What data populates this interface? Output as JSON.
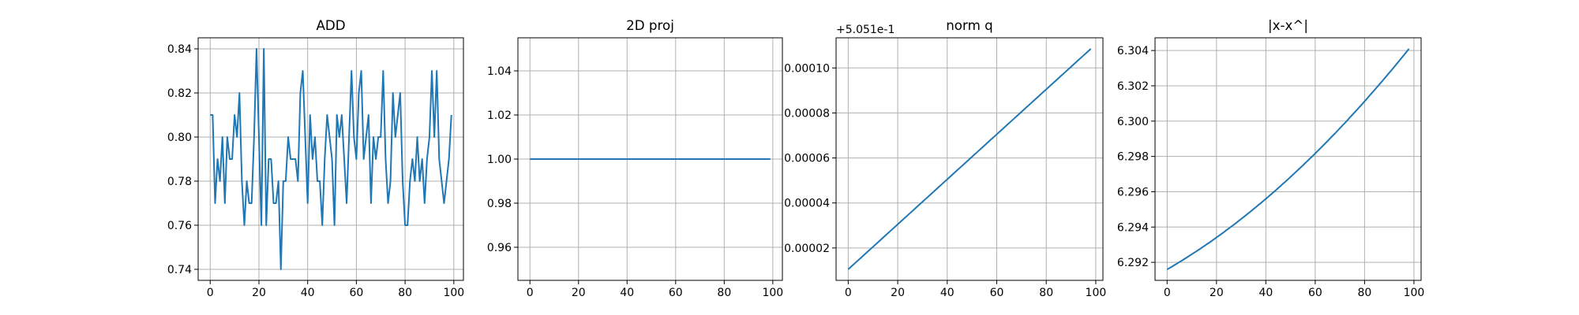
{
  "chart_data": [
    {
      "type": "line",
      "title": "ADD",
      "color": "#1f77b4",
      "grid": true,
      "x": [
        0,
        1,
        2,
        3,
        4,
        5,
        6,
        7,
        8,
        9,
        10,
        11,
        12,
        13,
        14,
        15,
        16,
        17,
        18,
        19,
        20,
        21,
        22,
        23,
        24,
        25,
        26,
        27,
        28,
        29,
        30,
        31,
        32,
        33,
        34,
        35,
        36,
        37,
        38,
        39,
        40,
        41,
        42,
        43,
        44,
        45,
        46,
        47,
        48,
        49,
        50,
        51,
        52,
        53,
        54,
        55,
        56,
        57,
        58,
        59,
        60,
        61,
        62,
        63,
        64,
        65,
        66,
        67,
        68,
        69,
        70,
        71,
        72,
        73,
        74,
        75,
        76,
        77,
        78,
        79,
        80,
        81,
        82,
        83,
        84,
        85,
        86,
        87,
        88,
        89,
        90,
        91,
        92,
        93,
        94,
        95,
        96,
        97,
        98,
        99
      ],
      "values": [
        0.81,
        0.81,
        0.77,
        0.79,
        0.78,
        0.8,
        0.77,
        0.8,
        0.79,
        0.79,
        0.81,
        0.8,
        0.82,
        0.78,
        0.76,
        0.78,
        0.77,
        0.77,
        0.8,
        0.84,
        0.8,
        0.76,
        0.84,
        0.76,
        0.79,
        0.79,
        0.77,
        0.77,
        0.78,
        0.74,
        0.78,
        0.78,
        0.8,
        0.79,
        0.79,
        0.79,
        0.78,
        0.82,
        0.83,
        0.8,
        0.77,
        0.81,
        0.79,
        0.8,
        0.78,
        0.78,
        0.76,
        0.79,
        0.81,
        0.8,
        0.79,
        0.76,
        0.81,
        0.8,
        0.81,
        0.79,
        0.77,
        0.8,
        0.83,
        0.8,
        0.79,
        0.82,
        0.83,
        0.79,
        0.8,
        0.81,
        0.77,
        0.8,
        0.79,
        0.8,
        0.8,
        0.83,
        0.79,
        0.77,
        0.78,
        0.82,
        0.8,
        0.81,
        0.82,
        0.78,
        0.76,
        0.76,
        0.78,
        0.79,
        0.78,
        0.8,
        0.78,
        0.79,
        0.77,
        0.79,
        0.8,
        0.83,
        0.8,
        0.83,
        0.79,
        0.78,
        0.77,
        0.78,
        0.79,
        0.81
      ],
      "xlim": [
        -4.95,
        103.95
      ],
      "xticks": [
        0,
        20,
        40,
        60,
        80,
        100
      ],
      "ylim": [
        0.735,
        0.845
      ],
      "yticks": [
        0.74,
        0.76,
        0.78,
        {
          "value": 0.8,
          "label": "0.80"
        },
        0.82,
        0.84
      ]
    },
    {
      "type": "line",
      "title": "2D proj",
      "color": "#1f77b4",
      "grid": true,
      "x": [
        0,
        1,
        2,
        3,
        4,
        5,
        6,
        7,
        8,
        9,
        10,
        11,
        12,
        13,
        14,
        15,
        16,
        17,
        18,
        19,
        20,
        21,
        22,
        23,
        24,
        25,
        26,
        27,
        28,
        29,
        30,
        31,
        32,
        33,
        34,
        35,
        36,
        37,
        38,
        39,
        40,
        41,
        42,
        43,
        44,
        45,
        46,
        47,
        48,
        49,
        50,
        51,
        52,
        53,
        54,
        55,
        56,
        57,
        58,
        59,
        60,
        61,
        62,
        63,
        64,
        65,
        66,
        67,
        68,
        69,
        70,
        71,
        72,
        73,
        74,
        75,
        76,
        77,
        78,
        79,
        80,
        81,
        82,
        83,
        84,
        85,
        86,
        87,
        88,
        89,
        90,
        91,
        92,
        93,
        94,
        95,
        96,
        97,
        98,
        99
      ],
      "values": [
        1,
        1,
        1,
        1,
        1,
        1,
        1,
        1,
        1,
        1,
        1,
        1,
        1,
        1,
        1,
        1,
        1,
        1,
        1,
        1,
        1,
        1,
        1,
        1,
        1,
        1,
        1,
        1,
        1,
        1,
        1,
        1,
        1,
        1,
        1,
        1,
        1,
        1,
        1,
        1,
        1,
        1,
        1,
        1,
        1,
        1,
        1,
        1,
        1,
        1,
        1,
        1,
        1,
        1,
        1,
        1,
        1,
        1,
        1,
        1,
        1,
        1,
        1,
        1,
        1,
        1,
        1,
        1,
        1,
        1,
        1,
        1,
        1,
        1,
        1,
        1,
        1,
        1,
        1,
        1,
        1,
        1,
        1,
        1,
        1,
        1,
        1,
        1,
        1,
        1,
        1,
        1,
        1,
        1,
        1,
        1,
        1,
        1,
        1,
        1
      ],
      "xlim": [
        -4.95,
        103.95
      ],
      "xticks": [
        0,
        20,
        40,
        60,
        80,
        100
      ],
      "ylim": [
        0.945,
        1.055
      ],
      "yticks": [
        0.96,
        0.98,
        {
          "value": 1.0,
          "label": "1.00"
        },
        1.02,
        1.04
      ]
    },
    {
      "type": "line",
      "title": "norm q",
      "offset_text": "+5.051e-1",
      "color": "#1f77b4",
      "grid": true,
      "x": [
        0,
        1,
        2,
        3,
        4,
        5,
        6,
        7,
        8,
        9,
        10,
        11,
        12,
        13,
        14,
        15,
        16,
        17,
        18,
        19,
        20,
        21,
        22,
        23,
        24,
        25,
        26,
        27,
        28,
        29,
        30,
        31,
        32,
        33,
        34,
        35,
        36,
        37,
        38,
        39,
        40,
        41,
        42,
        43,
        44,
        45,
        46,
        47,
        48,
        49,
        50,
        51,
        52,
        53,
        54,
        55,
        56,
        57,
        58,
        59,
        60,
        61,
        62,
        63,
        64,
        65,
        66,
        67,
        68,
        69,
        70,
        71,
        72,
        73,
        74,
        75,
        76,
        77,
        78,
        79,
        80,
        81,
        82,
        83,
        84,
        85,
        86,
        87,
        88,
        89,
        90,
        91,
        92,
        93,
        94,
        95,
        96,
        97,
        98
      ],
      "values": [
        1.05e-05,
        1.15e-05,
        1.25e-05,
        1.35e-05,
        1.45e-05,
        1.55e-05,
        1.65e-05,
        1.75e-05,
        1.85e-05,
        1.95e-05,
        2.05e-05,
        2.15e-05,
        2.25e-05,
        2.35e-05,
        2.45e-05,
        2.55e-05,
        2.65e-05,
        2.75e-05,
        2.85e-05,
        2.95e-05,
        3.05e-05,
        3.15e-05,
        3.25e-05,
        3.35e-05,
        3.45e-05,
        3.55e-05,
        3.65e-05,
        3.75e-05,
        3.85e-05,
        3.95e-05,
        4.05e-05,
        4.15e-05,
        4.25e-05,
        4.35e-05,
        4.45e-05,
        4.55e-05,
        4.65e-05,
        4.75e-05,
        4.85e-05,
        4.95e-05,
        5.05e-05,
        5.15e-05,
        5.25e-05,
        5.35e-05,
        5.45e-05,
        5.55e-05,
        5.65e-05,
        5.75e-05,
        5.85e-05,
        5.95e-05,
        6.05e-05,
        6.15e-05,
        6.25e-05,
        6.35e-05,
        6.45e-05,
        6.55e-05,
        6.65e-05,
        6.75e-05,
        6.85e-05,
        6.95e-05,
        7.05e-05,
        7.15e-05,
        7.25e-05,
        7.35e-05,
        7.45e-05,
        7.55e-05,
        7.65e-05,
        7.75e-05,
        7.85e-05,
        7.95e-05,
        8.05e-05,
        8.15e-05,
        8.25e-05,
        8.35e-05,
        8.45e-05,
        8.55e-05,
        8.65e-05,
        8.75e-05,
        8.85e-05,
        8.95e-05,
        9.05e-05,
        9.15e-05,
        9.25e-05,
        9.35e-05,
        9.45e-05,
        9.55e-05,
        9.65e-05,
        9.75e-05,
        9.85e-05,
        9.95e-05,
        0.0001005,
        0.0001015,
        0.0001025,
        0.0001035,
        0.0001045,
        0.0001055,
        0.0001065,
        0.0001075,
        0.0001085
      ],
      "xlim": [
        -4.9,
        102.9
      ],
      "xticks": [
        0,
        20,
        40,
        60,
        80,
        100
      ],
      "ylim": [
        5.6e-06,
        0.0001134
      ],
      "yticks": [
        2e-05,
        4e-05,
        6e-05,
        8e-05,
        {
          "value": 0.0001,
          "label": "0.00010"
        }
      ]
    },
    {
      "type": "line",
      "title": "|x-x^|",
      "color": "#1f77b4",
      "grid": true,
      "x": [
        0,
        1,
        2,
        3,
        4,
        5,
        6,
        7,
        8,
        9,
        10,
        11,
        12,
        13,
        14,
        15,
        16,
        17,
        18,
        19,
        20,
        21,
        22,
        23,
        24,
        25,
        26,
        27,
        28,
        29,
        30,
        31,
        32,
        33,
        34,
        35,
        36,
        37,
        38,
        39,
        40,
        41,
        42,
        43,
        44,
        45,
        46,
        47,
        48,
        49,
        50,
        51,
        52,
        53,
        54,
        55,
        56,
        57,
        58,
        59,
        60,
        61,
        62,
        63,
        64,
        65,
        66,
        67,
        68,
        69,
        70,
        71,
        72,
        73,
        74,
        75,
        76,
        77,
        78,
        79,
        80,
        81,
        82,
        83,
        84,
        85,
        86,
        87,
        88,
        89,
        90,
        91,
        92,
        93,
        94,
        95,
        96,
        97,
        98
      ],
      "values": [
        6.2916,
        6.29168,
        6.29176,
        6.29185,
        6.29193,
        6.29202,
        6.2921,
        6.29219,
        6.29228,
        6.29237,
        6.29246,
        6.29255,
        6.29264,
        6.29273,
        6.29283,
        6.29292,
        6.29302,
        6.29311,
        6.29321,
        6.29331,
        6.29341,
        6.29351,
        6.29361,
        6.29371,
        6.29382,
        6.29392,
        6.29403,
        6.29413,
        6.29424,
        6.29435,
        6.29446,
        6.29457,
        6.29468,
        6.29479,
        6.2949,
        6.29502,
        6.29513,
        6.29525,
        6.29536,
        6.29548,
        6.2956,
        6.29572,
        6.29584,
        6.29596,
        6.29608,
        6.29621,
        6.29633,
        6.29646,
        6.29658,
        6.29671,
        6.29684,
        6.29697,
        6.2971,
        6.29723,
        6.29736,
        6.29749,
        6.29763,
        6.29776,
        6.2979,
        6.29803,
        6.29817,
        6.29831,
        6.29845,
        6.29859,
        6.29873,
        6.29887,
        6.29902,
        6.29916,
        6.2993,
        6.29945,
        6.2996,
        6.29975,
        6.29989,
        6.30004,
        6.3002,
        6.30035,
        6.3005,
        6.30065,
        6.30081,
        6.30096,
        6.30112,
        6.30128,
        6.30144,
        6.3016,
        6.30176,
        6.30192,
        6.30208,
        6.30224,
        6.30241,
        6.30257,
        6.30274,
        6.3029,
        6.30307,
        6.30324,
        6.30341,
        6.30358,
        6.30375,
        6.30393,
        6.3041
      ],
      "xlim": [
        -4.9,
        102.9
      ],
      "xticks": [
        0,
        20,
        40,
        60,
        80,
        100
      ],
      "ylim": [
        6.29098,
        6.30472
      ],
      "yticks": [
        6.292,
        6.294,
        6.296,
        6.298,
        {
          "value": 6.3,
          "label": "6.300"
        },
        6.302,
        6.304
      ]
    }
  ]
}
